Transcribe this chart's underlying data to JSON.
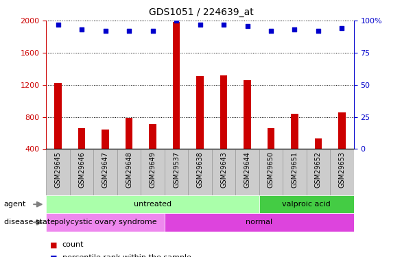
{
  "title": "GDS1051 / 224639_at",
  "categories": [
    "GSM29645",
    "GSM29646",
    "GSM29647",
    "GSM29648",
    "GSM29649",
    "GSM29537",
    "GSM29638",
    "GSM29643",
    "GSM29644",
    "GSM29650",
    "GSM29651",
    "GSM29652",
    "GSM29653"
  ],
  "counts": [
    1220,
    660,
    640,
    790,
    710,
    1980,
    1310,
    1320,
    1260,
    660,
    840,
    530,
    860
  ],
  "percentiles": [
    97,
    93,
    92,
    92,
    92,
    100,
    97,
    97,
    96,
    92,
    93,
    92,
    94
  ],
  "ylim_left": [
    400,
    2000
  ],
  "ylim_right": [
    0,
    100
  ],
  "yticks_left": [
    400,
    800,
    1200,
    1600,
    2000
  ],
  "yticks_right": [
    0,
    25,
    50,
    75,
    100
  ],
  "agent_groups": [
    {
      "label": "untreated",
      "start": 0,
      "end": 9,
      "color": "#AAFFAA"
    },
    {
      "label": "valproic acid",
      "start": 9,
      "end": 13,
      "color": "#44CC44"
    }
  ],
  "disease_groups": [
    {
      "label": "polycystic ovary syndrome",
      "start": 0,
      "end": 5,
      "color": "#EE88EE"
    },
    {
      "label": "normal",
      "start": 5,
      "end": 13,
      "color": "#DD44DD"
    }
  ],
  "bar_color": "#CC0000",
  "dot_color": "#0000CC",
  "bar_bottom": 400,
  "xtick_bg_color": "#CCCCCC",
  "xtick_border_color": "#999999"
}
